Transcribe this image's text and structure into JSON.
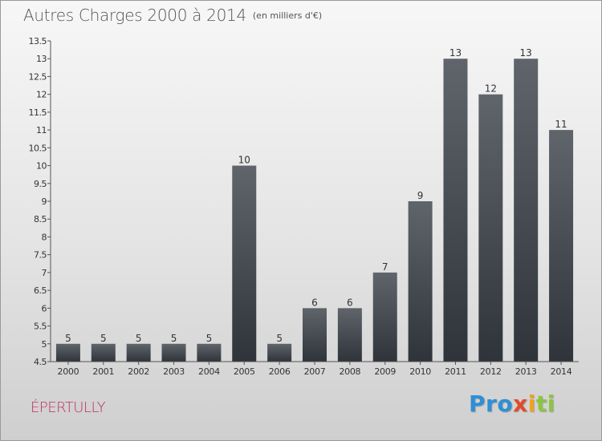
{
  "title": "Autres Charges 2000 à 2014",
  "subtitle": "(en milliers d'€)",
  "commune": "ÉPERTULLY",
  "logo": [
    "P",
    "r",
    "o",
    "x",
    "i",
    "t",
    "i"
  ],
  "colors": {
    "bar_top": "#5f656b",
    "bar_bottom": "#2e343a",
    "axis": "#555555",
    "title": "#555555",
    "commune": "#c0305a"
  },
  "chart_data": {
    "type": "bar",
    "categories": [
      "2000",
      "2001",
      "2002",
      "2003",
      "2004",
      "2005",
      "2006",
      "2007",
      "2008",
      "2009",
      "2010",
      "2011",
      "2012",
      "2013",
      "2014"
    ],
    "values": [
      5,
      5,
      5,
      5,
      5,
      10,
      5,
      6,
      6,
      7,
      9,
      13,
      12,
      13,
      11
    ],
    "value_labels": [
      "5",
      "5",
      "5",
      "5",
      "5",
      "10",
      "5",
      "6",
      "6",
      "7",
      "9",
      "13",
      "12",
      "13",
      "11"
    ],
    "title": "Autres Charges 2000 à 2014",
    "subtitle": "(en milliers d'€)",
    "xlabel": "",
    "ylabel": "",
    "ylim": [
      4.5,
      13.5
    ],
    "yticks": [
      4.5,
      5,
      5.5,
      6,
      6.5,
      7,
      7.5,
      8,
      8.5,
      9,
      9.5,
      10,
      10.5,
      11,
      11.5,
      12,
      12.5,
      13,
      13.5
    ],
    "ytick_labels": [
      "4.5",
      "5",
      "5.5",
      "6",
      "6.5",
      "7",
      "7.5",
      "8",
      "8.5",
      "9",
      "9.5",
      "10",
      "10.5",
      "11",
      "11.5",
      "12",
      "12.5",
      "13",
      "13.5"
    ],
    "grid": false,
    "legend": "none"
  }
}
